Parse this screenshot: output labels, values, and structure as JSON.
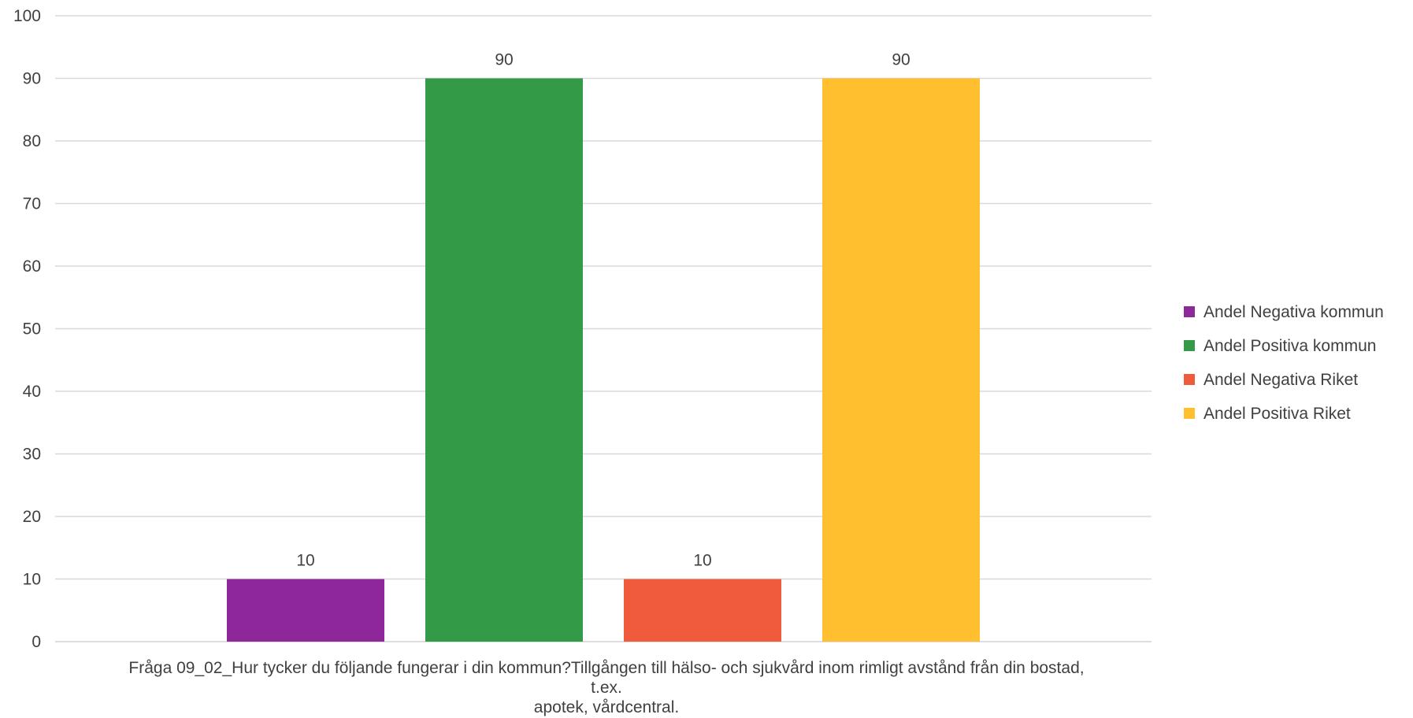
{
  "chart_data": {
    "type": "bar",
    "categories": [
      "Fråga 09_02_Hur tycker du följande fungerar i din kommun?Tillgången till hälso- och sjukvård inom rimligt avstånd från din bostad, t.ex. apotek, vårdcentral."
    ],
    "category_label_lines": [
      "Fråga 09_02_Hur tycker du följande fungerar i din kommun?Tillgången till hälso- och sjukvård inom rimligt avstånd från din bostad,",
      "t.ex.",
      "apotek, vårdcentral."
    ],
    "series": [
      {
        "name": "Andel Negativa kommun",
        "values": [
          10
        ],
        "color": "#8E289A"
      },
      {
        "name": "Andel Positiva kommun",
        "values": [
          90
        ],
        "color": "#339A47"
      },
      {
        "name": "Andel Negativa Riket",
        "values": [
          10
        ],
        "color": "#F05B3C"
      },
      {
        "name": "Andel Positiva Riket",
        "values": [
          90
        ],
        "color": "#FFBF2F"
      }
    ],
    "title": "",
    "xlabel": "",
    "ylabel": "",
    "ylim": [
      0,
      100
    ],
    "yticks": [
      0,
      10,
      20,
      30,
      40,
      50,
      60,
      70,
      80,
      90,
      100
    ],
    "grid": true,
    "legend_position": "right",
    "data_labels": true
  }
}
